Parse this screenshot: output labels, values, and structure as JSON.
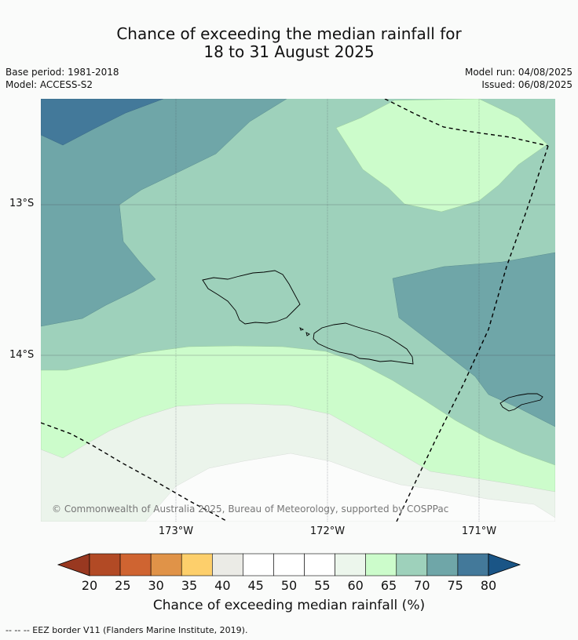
{
  "header": {
    "title_line1": "Chance of exceeding the median rainfall for",
    "title_line2": "18 to 31 August 2025",
    "base_period": "Base period: 1981-2018",
    "model": "Model: ACCESS-S2",
    "model_run": "Model run: 04/08/2025",
    "issued": "Issued: 06/08/2025"
  },
  "map": {
    "lat_labels": [
      "13°S",
      "14°S"
    ],
    "lon_labels": [
      "173°W",
      "172°W",
      "171°W"
    ],
    "copyright": "© Commonwealth of Australia 2025, Bureau of Meteorology, supported by COSPPac",
    "colors": {
      "p75_80": "#43799a",
      "p70_75": "#6fa6a8",
      "p65_70": "#9ed1bb",
      "p60_65": "#ccfccb",
      "p55_60": "#ebf4eb",
      "p45_55": "#fbfcfb"
    }
  },
  "colorbar": {
    "ticks": [
      "20",
      "25",
      "30",
      "35",
      "40",
      "45",
      "50",
      "55",
      "60",
      "65",
      "70",
      "75",
      "80"
    ],
    "label": "Chance of exceeding median rainfall (%)",
    "colors": [
      "#b24a25",
      "#cf6431",
      "#e09348",
      "#fdcf6b",
      "#ebebe6",
      "#ffffff",
      "#ffffff",
      "#ffffff",
      "#ecf6ec",
      "#ccfccb",
      "#9ed1bb",
      "#6fa6a8",
      "#43799a"
    ],
    "under_color": "#993820",
    "over_color": "#1a5586"
  },
  "footnote": "--  --  -- EEZ border V11 (Flanders Marine Institute, 2019)."
}
